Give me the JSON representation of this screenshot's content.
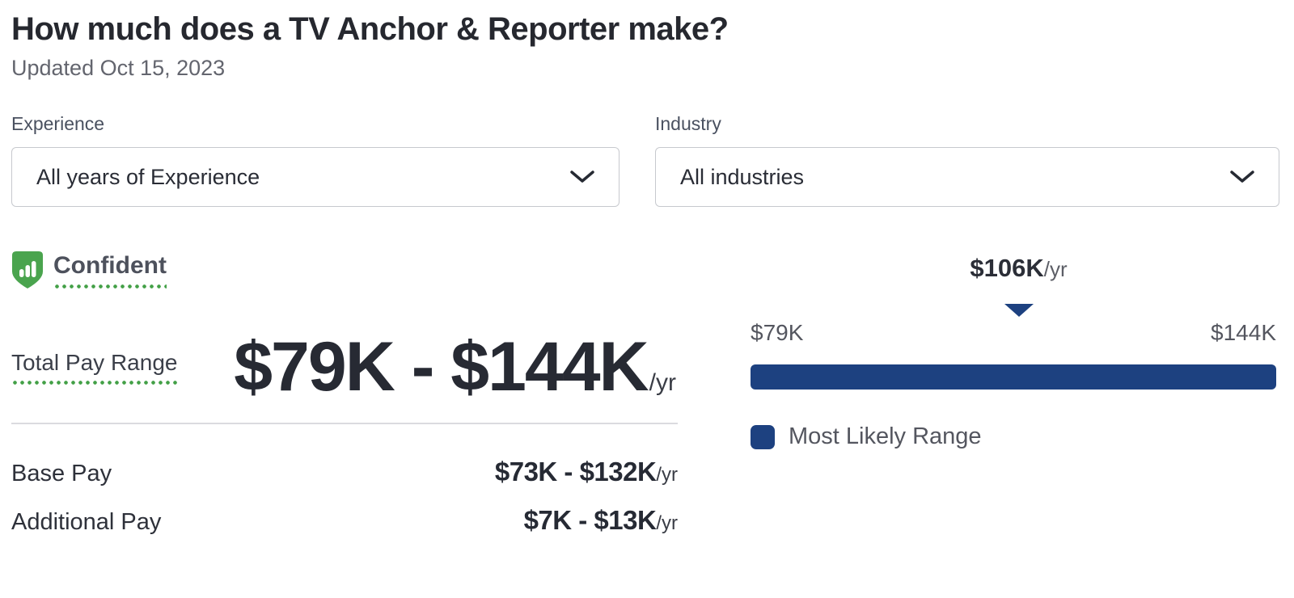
{
  "header": {
    "title": "How much does a TV Anchor & Reporter make?",
    "updated": "Updated Oct 15, 2023"
  },
  "filters": {
    "experience": {
      "label": "Experience",
      "value": "All years of Experience"
    },
    "industry": {
      "label": "Industry",
      "value": "All industries"
    }
  },
  "confidence": {
    "label": "Confident"
  },
  "total_pay": {
    "label": "Total Pay Range",
    "range": "$79K - $144K",
    "period": "/yr"
  },
  "breakdown": [
    {
      "label": "Base Pay",
      "value": "$73K - $132K",
      "period": "/yr"
    },
    {
      "label": "Additional Pay",
      "value": "$7K - $13K",
      "period": "/yr"
    }
  ],
  "chart": {
    "type": "range-bar",
    "median": "$106K",
    "median_period": "/yr",
    "median_position_pct": 51,
    "min_label": "$79K",
    "max_label": "$144K",
    "legend": "Most Likely Range"
  },
  "icons": {
    "confidence_badge": "shield-with-bar-chart",
    "select": "chevron-down",
    "median_marker": "triangle-down"
  },
  "colors": {
    "accent_green": "#43a047",
    "shield_green": "#4aa44e",
    "range_navy": "#1d4180",
    "text_dark": "#272a33",
    "text_gray": "#54565f"
  }
}
